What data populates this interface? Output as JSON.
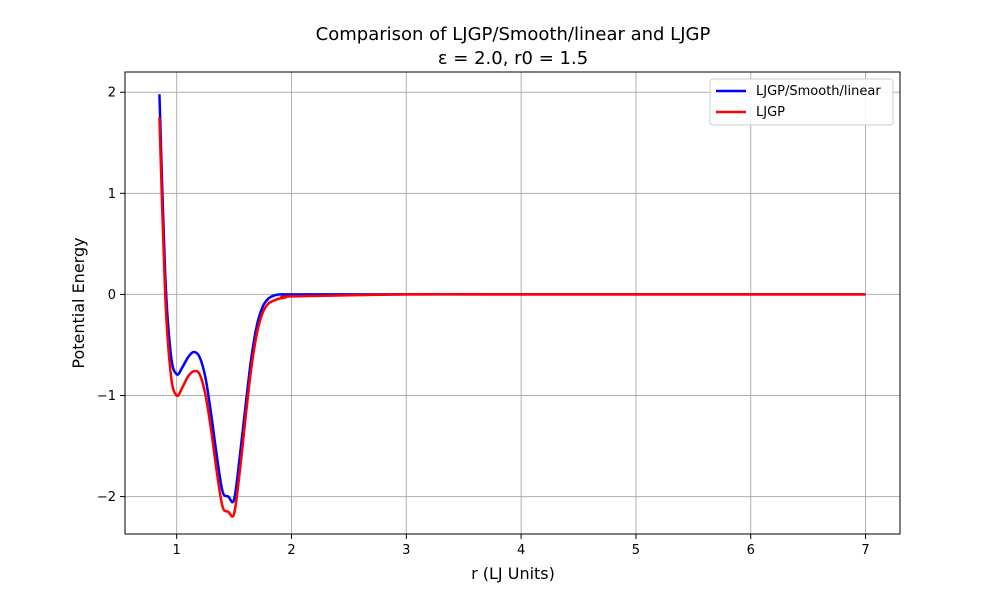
{
  "chart_data": {
    "type": "line",
    "title": "Comparison of LJGP/Smooth/linear and LJGP",
    "subtitle": "ε = 2.0, r0 = 1.5",
    "xlabel": "r (LJ Units)",
    "ylabel": "Potential Energy",
    "xlim": [
      0.55,
      7.3
    ],
    "ylim": [
      -2.37,
      2.2
    ],
    "xticks": [
      1,
      2,
      3,
      4,
      5,
      6,
      7
    ],
    "xtick_labels": [
      "1",
      "2",
      "3",
      "4",
      "5",
      "6",
      "7"
    ],
    "yticks": [
      2,
      1,
      0,
      -1,
      -2
    ],
    "ytick_labels": [
      "2",
      "1",
      "0",
      "−1",
      "−2"
    ],
    "grid": true,
    "legend_position": "top-right",
    "series": [
      {
        "name": "LJGP/Smooth/linear",
        "color": "#0000ff",
        "x": [
          0.85,
          0.9,
          0.95,
          1.0,
          1.05,
          1.1,
          1.15,
          1.2,
          1.25,
          1.3,
          1.35,
          1.4,
          1.45,
          1.5,
          1.55,
          1.6,
          1.65,
          1.7,
          1.75,
          1.8,
          1.85,
          1.9,
          1.95,
          2.0,
          3.0,
          4.0,
          5.0,
          6.0,
          7.0
        ],
        "y": [
          1.98,
          0.2,
          -0.6,
          -0.79,
          -0.72,
          -0.62,
          -0.57,
          -0.62,
          -0.82,
          -1.18,
          -1.6,
          -1.95,
          -2.0,
          -2.03,
          -1.6,
          -1.1,
          -0.63,
          -0.3,
          -0.12,
          -0.04,
          -0.01,
          0.0,
          0.0,
          0.0,
          0.0,
          0.0,
          0.0,
          0.0,
          0.0
        ]
      },
      {
        "name": "LJGP",
        "color": "#ff0000",
        "x": [
          0.85,
          0.9,
          0.95,
          1.0,
          1.05,
          1.1,
          1.15,
          1.2,
          1.25,
          1.3,
          1.35,
          1.4,
          1.45,
          1.5,
          1.55,
          1.6,
          1.65,
          1.7,
          1.75,
          1.8,
          1.85,
          1.9,
          1.95,
          2.0,
          3.0,
          4.0,
          5.0,
          6.0,
          7.0
        ],
        "y": [
          1.75,
          0.0,
          -0.8,
          -1.0,
          -0.92,
          -0.81,
          -0.76,
          -0.79,
          -0.99,
          -1.34,
          -1.76,
          -2.1,
          -2.15,
          -2.17,
          -1.75,
          -1.22,
          -0.73,
          -0.38,
          -0.18,
          -0.09,
          -0.06,
          -0.04,
          -0.03,
          -0.02,
          0.0,
          0.0,
          0.0,
          0.0,
          0.0
        ]
      }
    ]
  }
}
